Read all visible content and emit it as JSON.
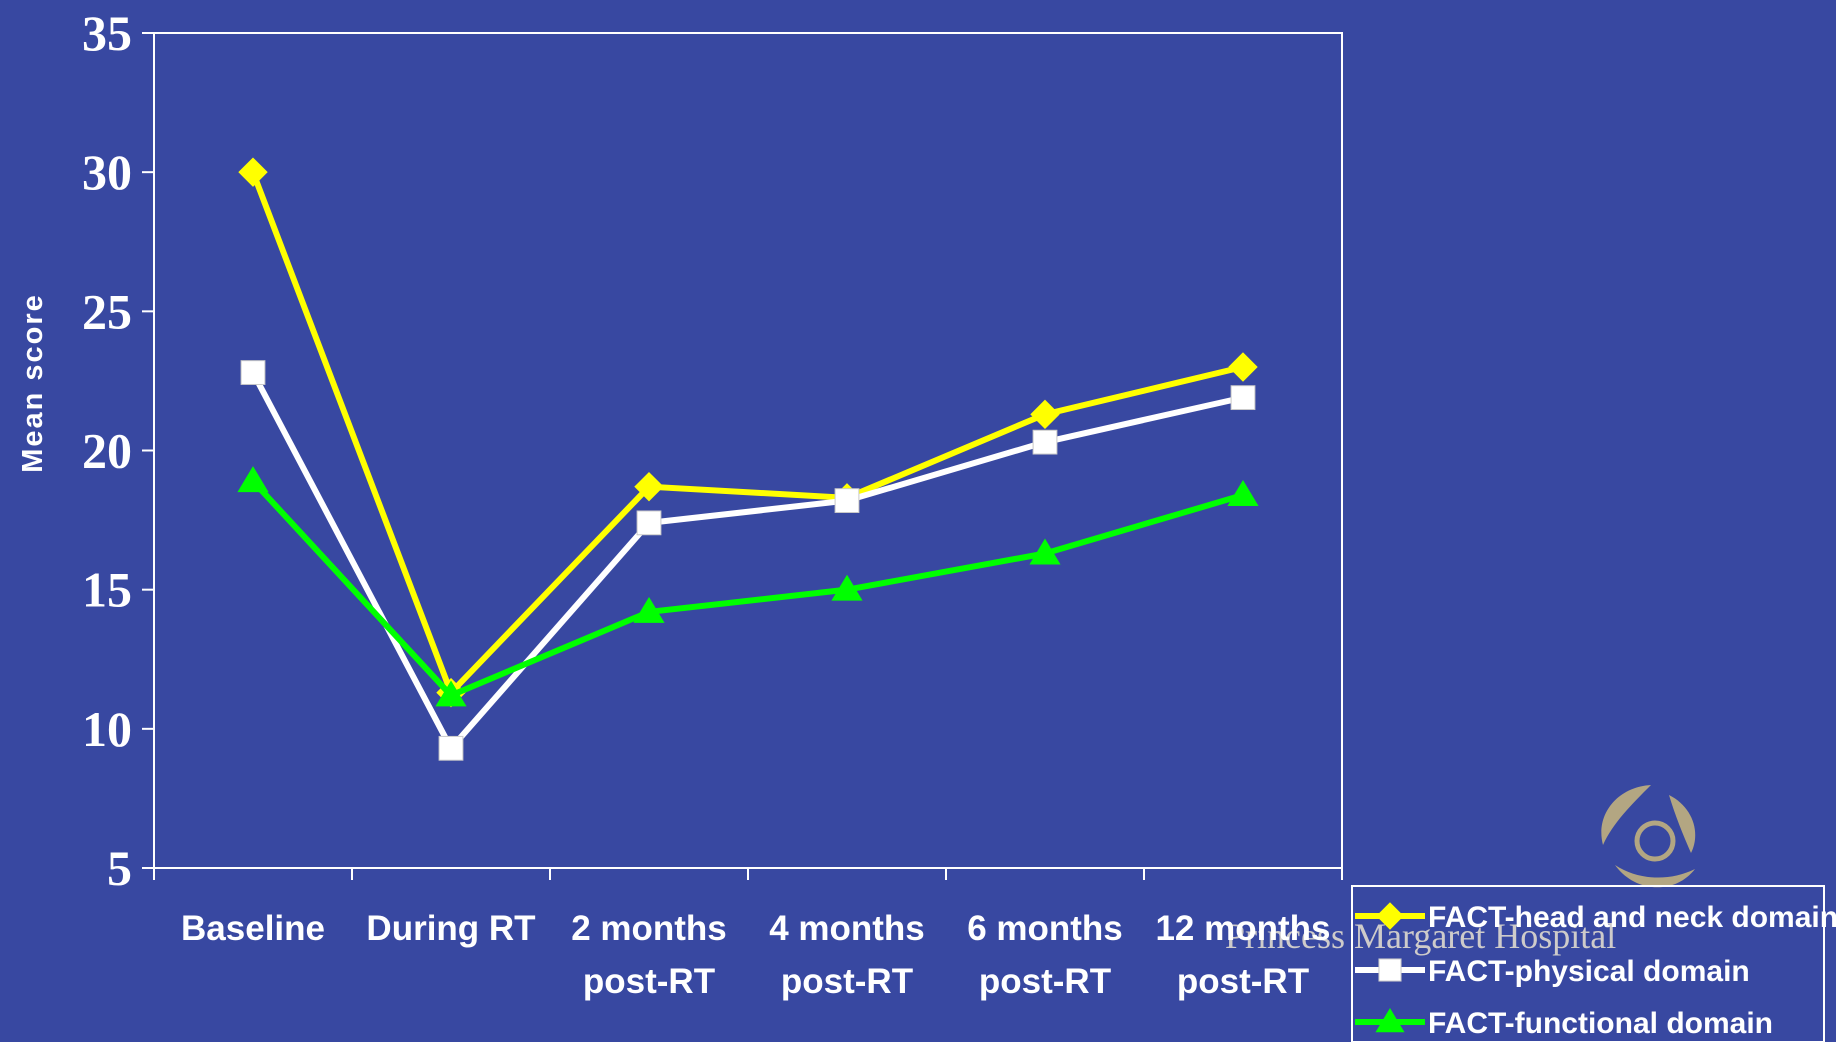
{
  "chart_data": {
    "type": "line",
    "categories": [
      [
        "Baseline"
      ],
      [
        "During RT"
      ],
      [
        "2 months",
        "post-RT"
      ],
      [
        "4 months",
        "post-RT"
      ],
      [
        "6 months",
        "post-RT"
      ],
      [
        "12 months",
        "post-RT"
      ]
    ],
    "ylabel": "Mean score",
    "xlabel": "",
    "ylim": [
      5,
      35
    ],
    "yticks": [
      "5",
      "10",
      "15",
      "20",
      "25",
      "30",
      "35"
    ],
    "grid": false,
    "legend_position": "bottom-right",
    "series": [
      {
        "name": "FACT-head and neck domain",
        "color": "#FFFF00",
        "marker": "diamond",
        "values": [
          30.0,
          11.3,
          18.7,
          18.3,
          21.3,
          23.0
        ]
      },
      {
        "name": "FACT-physical domain",
        "color": "#FFFFFF",
        "marker": "square",
        "values": [
          22.8,
          9.3,
          17.4,
          18.2,
          20.3,
          21.9
        ]
      },
      {
        "name": "FACT-functional domain",
        "color": "#00FF00",
        "marker": "triangle",
        "values": [
          18.9,
          11.2,
          14.2,
          15.0,
          16.3,
          18.4
        ]
      }
    ]
  },
  "watermark": {
    "text": "Princess Margaret Hospital",
    "logo": "princess-margaret-hospital-logo"
  },
  "colors": {
    "background": "#3848A1",
    "axis": "#FFFFFF"
  }
}
